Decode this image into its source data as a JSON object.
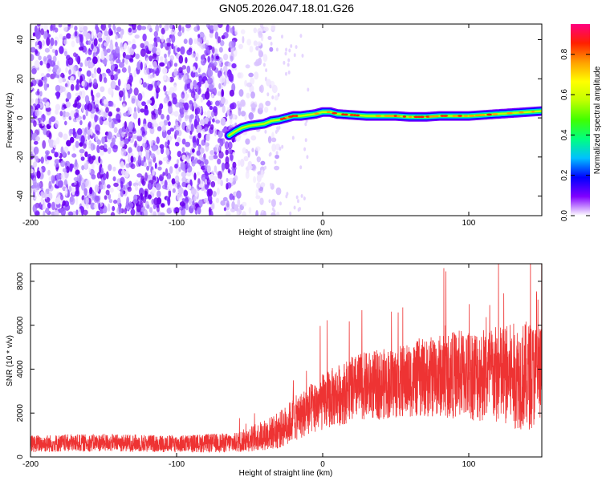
{
  "title": "GN05.2026.047.18.01.G26",
  "chart_data": [
    {
      "type": "heatmap",
      "xlabel": "Height of straight line (km)",
      "ylabel": "Frequency (Hz)",
      "xlim": [
        -200,
        150
      ],
      "ylim": [
        -50,
        48
      ],
      "xticks": [
        -200,
        -100,
        0,
        100
      ],
      "yticks": [
        -40,
        -20,
        0,
        20,
        40
      ],
      "colorbar": {
        "label": "Normalized spectral amplitude",
        "range": [
          0,
          0.95
        ],
        "ticks": [
          0.0,
          0.2,
          0.4,
          0.6,
          0.8
        ],
        "tick_labels": [
          "0.0",
          "0.2",
          "0.4",
          "0.6",
          "0.8"
        ],
        "colors": [
          "#ffffff",
          "#8000ff",
          "#0000ff",
          "#00c0ff",
          "#00ff80",
          "#40ff00",
          "#c0ff00",
          "#ffff00",
          "#ffa000",
          "#ff2000",
          "#ff0080"
        ]
      },
      "ridge": {
        "x": [
          -64,
          -60,
          -55,
          -50,
          -45,
          -40,
          -35,
          -30,
          -25,
          -20,
          -15,
          -10,
          -5,
          0,
          5,
          10,
          20,
          30,
          40,
          50,
          60,
          70,
          80,
          90,
          100,
          110,
          120,
          130,
          140,
          150
        ],
        "y": [
          -9,
          -7,
          -5,
          -4,
          -3.5,
          -3,
          -1.5,
          -1,
          0,
          1,
          1,
          1.5,
          2,
          3,
          3,
          2,
          1.5,
          1,
          1,
          1,
          0.5,
          0.5,
          1,
          1,
          1,
          1.5,
          2,
          2.5,
          3,
          3.5
        ]
      }
    },
    {
      "type": "line",
      "xlabel": "Height of straight line (km)",
      "ylabel": "SNR (10 * v/v)",
      "xlim": [
        -200,
        150
      ],
      "ylim": [
        0,
        8800
      ],
      "xticks": [
        -200,
        -100,
        0,
        100
      ],
      "yticks": [
        0,
        2000,
        4000,
        6000,
        8000
      ],
      "color": "#ee3333",
      "trend": {
        "x": [
          -200,
          -150,
          -100,
          -60,
          -45,
          -30,
          -20,
          -10,
          0,
          10,
          25,
          40,
          60,
          80,
          100,
          120,
          140,
          150
        ],
        "y": [
          600,
          650,
          600,
          650,
          900,
          1200,
          1700,
          2100,
          2500,
          2800,
          3200,
          3300,
          3500,
          3700,
          3800,
          3700,
          3700,
          3800
        ]
      },
      "spread": {
        "x": [
          -200,
          -100,
          -60,
          -40,
          -20,
          0,
          20,
          40,
          60,
          80,
          100,
          120,
          140,
          150
        ],
        "y": [
          400,
          400,
          450,
          700,
          1000,
          1300,
          1500,
          1600,
          1700,
          1900,
          2100,
          2300,
          2500,
          2300
        ]
      }
    }
  ]
}
